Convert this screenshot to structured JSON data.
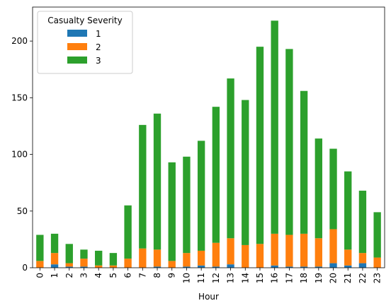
{
  "chart_data": {
    "type": "bar",
    "stacked": true,
    "title": "",
    "xlabel": "Hour",
    "ylabel": "",
    "ylim": [
      0,
      230
    ],
    "yticks": [
      0,
      50,
      100,
      150,
      200
    ],
    "categories": [
      "0",
      "1",
      "2",
      "3",
      "4",
      "5",
      "6",
      "7",
      "8",
      "9",
      "10",
      "11",
      "12",
      "13",
      "14",
      "15",
      "16",
      "17",
      "18",
      "19",
      "20",
      "21",
      "22",
      "23"
    ],
    "legend": {
      "title": "Casualty Severity",
      "position": "top-left"
    },
    "grid": false,
    "series": [
      {
        "name": "1",
        "color": "#1f77b4",
        "values": [
          0,
          3,
          1,
          1,
          0,
          0,
          0,
          0,
          1,
          0,
          1,
          2,
          1,
          3,
          0,
          0,
          2,
          1,
          1,
          1,
          4,
          2,
          4,
          0
        ]
      },
      {
        "name": "2",
        "color": "#ff7f0e",
        "values": [
          6,
          10,
          3,
          7,
          2,
          2,
          8,
          17,
          15,
          6,
          12,
          13,
          21,
          23,
          20,
          21,
          28,
          28,
          29,
          25,
          30,
          14,
          9,
          9
        ]
      },
      {
        "name": "3",
        "color": "#2ca02c",
        "values": [
          23,
          17,
          17,
          8,
          13,
          11,
          47,
          109,
          120,
          87,
          85,
          97,
          120,
          141,
          128,
          174,
          188,
          164,
          126,
          88,
          71,
          69,
          55,
          40
        ]
      }
    ]
  }
}
